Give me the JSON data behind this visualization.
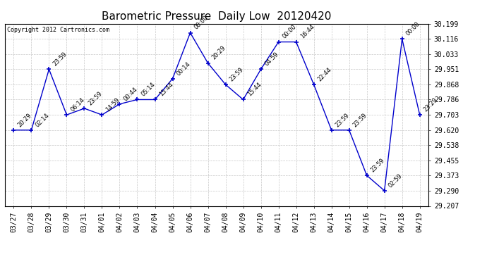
{
  "title": "Barometric Pressure  Daily Low  20120420",
  "copyright": "Copyright 2012 Cartronics.com",
  "x_labels": [
    "03/27",
    "03/28",
    "03/29",
    "03/30",
    "03/31",
    "04/01",
    "04/02",
    "04/03",
    "04/04",
    "04/05",
    "04/06",
    "04/07",
    "04/08",
    "04/09",
    "04/10",
    "04/11",
    "04/12",
    "04/13",
    "04/14",
    "04/15",
    "04/16",
    "04/17",
    "04/18",
    "04/19"
  ],
  "y_values": [
    29.62,
    29.62,
    29.951,
    29.703,
    29.738,
    29.703,
    29.762,
    29.786,
    29.786,
    29.9,
    30.15,
    29.985,
    29.868,
    29.786,
    29.951,
    30.1,
    30.1,
    29.868,
    29.62,
    29.62,
    29.373,
    29.29,
    30.116,
    29.703
  ],
  "point_labels": [
    "20:29",
    "02:14",
    "23:59",
    "06:14",
    "23:59",
    "14:59",
    "00:44",
    "05:14",
    "15:44",
    "00:14",
    "00:00",
    "20:29",
    "23:59",
    "15:44",
    "04:59",
    "00:00",
    "16:44",
    "22:44",
    "23:59",
    "23:59",
    "23:59",
    "02:59",
    "00:00",
    "23:29"
  ],
  "line_color": "#0000cc",
  "background_color": "#ffffff",
  "grid_color": "#c8c8c8",
  "y_ticks": [
    30.199,
    30.116,
    30.033,
    29.951,
    29.868,
    29.786,
    29.703,
    29.62,
    29.538,
    29.455,
    29.373,
    29.29,
    29.207
  ],
  "ylim_min": 29.207,
  "ylim_max": 30.199,
  "title_fontsize": 11,
  "annot_fontsize": 6,
  "tick_fontsize": 7
}
